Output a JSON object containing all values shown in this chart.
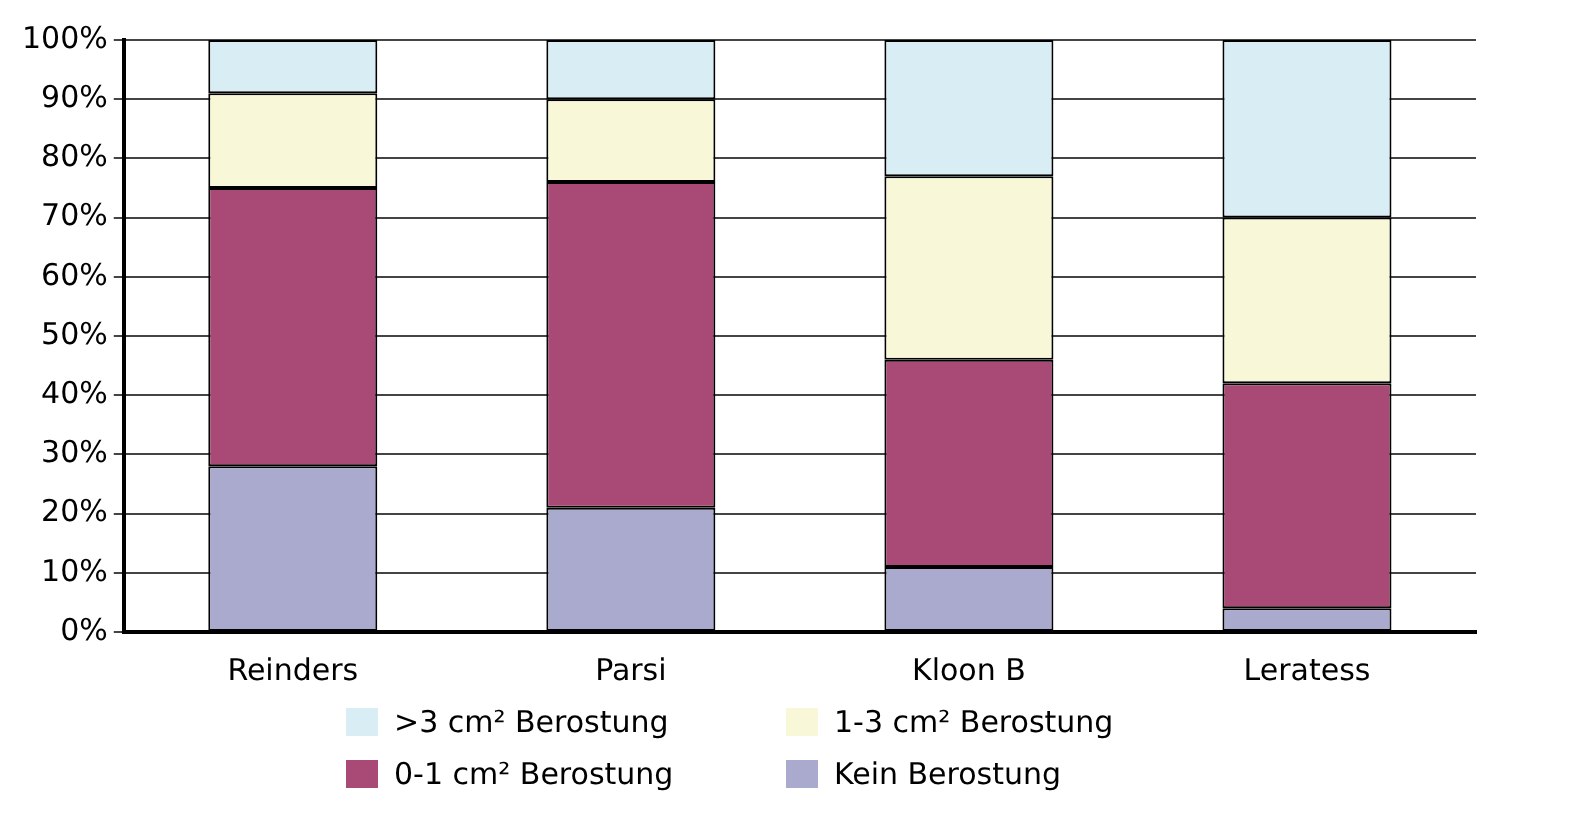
{
  "chart_data": {
    "type": "bar",
    "stacked": true,
    "categories": [
      "Reinders",
      "Parsi",
      "Kloon B",
      "Leratess"
    ],
    "series": [
      {
        "name": "Kein Berostung",
        "color": "#aaaacf",
        "values": [
          28,
          21,
          11,
          4
        ]
      },
      {
        "name": "0-1 cm² Berostung",
        "color": "#a94a76",
        "values": [
          47,
          55,
          35,
          38
        ]
      },
      {
        "name": "1-3 cm² Berostung",
        "color": "#f8f8d8",
        "values": [
          16,
          14,
          31,
          28
        ]
      },
      {
        "name": ">3 cm² Berostung",
        "color": "#d9eef4",
        "values": [
          9,
          10,
          23,
          30
        ]
      }
    ],
    "ylim": [
      0,
      100
    ],
    "yticks": [
      {
        "value": 0,
        "label": "0%"
      },
      {
        "value": 10,
        "label": "10%"
      },
      {
        "value": 20,
        "label": "20%"
      },
      {
        "value": 30,
        "label": "30%"
      },
      {
        "value": 40,
        "label": "40%"
      },
      {
        "value": 50,
        "label": "50%"
      },
      {
        "value": 60,
        "label": "60%"
      },
      {
        "value": 70,
        "label": "70%"
      },
      {
        "value": 80,
        "label": "80%"
      },
      {
        "value": 90,
        "label": "90%"
      },
      {
        "value": 100,
        "label": "100%"
      }
    ],
    "grid": "y",
    "legend": "bottom"
  }
}
